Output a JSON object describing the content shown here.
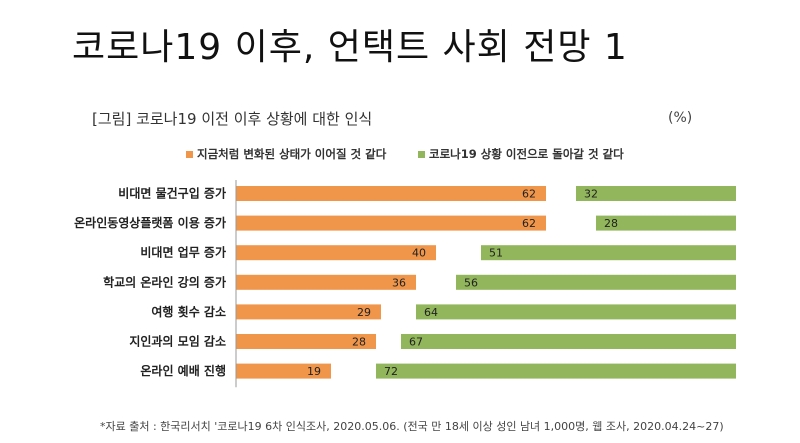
{
  "slide": {
    "title": "코로나19 이후, 언택트 사회 전망 1"
  },
  "chart_data": {
    "type": "bar",
    "title": "[그림] 코로나19 이전 이후 상황에 대한 인식",
    "unit": "(%)",
    "categories": [
      "비대면 물건구입 증가",
      "온라인동영상플랫폼 이용 증가",
      "비대면 업무 증가",
      "학교의 온라인 강의 증가",
      "여행 횟수 감소",
      "지인과의 모임 감소",
      "온라인 예배 진행"
    ],
    "series": [
      {
        "name": "지금처럼 변화된 상태가 이어질 것 같다",
        "color": "#F0964A",
        "values": [
          62,
          62,
          40,
          36,
          29,
          28,
          19
        ]
      },
      {
        "name": "코로나19 상황 이전으로 돌아갈 것 같다",
        "color": "#92B65C",
        "values": [
          32,
          28,
          51,
          56,
          64,
          67,
          72
        ]
      }
    ],
    "xlim": [
      0,
      100
    ]
  },
  "source": "*자료 출처 : 한국리서치 '코로나19  6차 인식조사, 2020.05.06. (전국 만 18세 이상 성인 남녀 1,000명,  웹 조사, 2020.04.24~27)"
}
